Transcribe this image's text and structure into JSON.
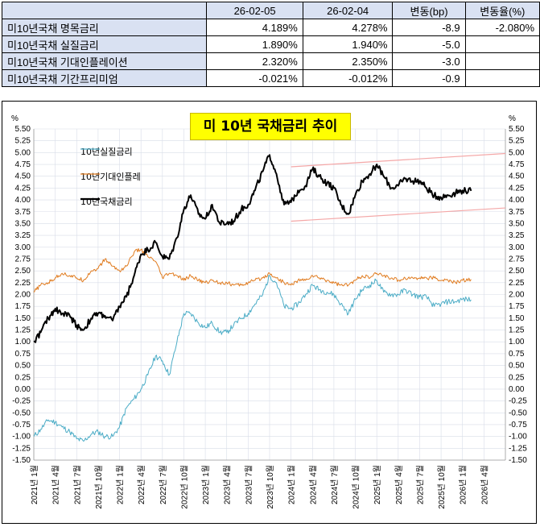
{
  "table": {
    "headers": [
      "",
      "26-02-05",
      "26-02-04",
      "변동(bp)",
      "변동율(%)"
    ],
    "rows": [
      {
        "label": "미10년국채 명목금리",
        "v1": "4.189%",
        "v2": "4.278%",
        "bp": "-8.9",
        "pct": "-2.080%"
      },
      {
        "label": "미10년국채 실질금리",
        "v1": "1.890%",
        "v2": "1.940%",
        "bp": "-5.0",
        "pct": ""
      },
      {
        "label": "미10년국채 기대인플레이션",
        "v1": "2.320%",
        "v2": "2.350%",
        "bp": "-3.0",
        "pct": ""
      },
      {
        "label": "미10년국채 기간프리미엄",
        "v1": "-0.021%",
        "v2": "-0.012%",
        "bp": "-0.9",
        "pct": ""
      }
    ]
  },
  "chart_data": {
    "type": "line",
    "title": "미 10년 국채금리 추이",
    "unit_left": "%",
    "unit_right": "%",
    "ylim": [
      -1.5,
      5.5
    ],
    "ytick_step": 0.25,
    "x_start": 2021.0,
    "x_end": 2026.5,
    "xticks": [
      "2021년 1월",
      "2021년 4월",
      "2021년 7월",
      "2021년 10월",
      "2022년 1월",
      "2022년 4월",
      "2022년 7월",
      "2022년 10월",
      "2023년 1월",
      "2023년 4월",
      "2023년 7월",
      "2023년 10월",
      "2024년 1월",
      "2024년 4월",
      "2024년 7월",
      "2024년 10월",
      "2025년 1월",
      "2025년 4월",
      "2025년 7월",
      "2025년 10월",
      "2026년 1월",
      "2026년 4월"
    ],
    "grid": true,
    "series": [
      {
        "name": "10년실질금리",
        "color": "#4bacc6",
        "x": [
          2021.0,
          2021.08,
          2021.17,
          2021.25,
          2021.33,
          2021.42,
          2021.5,
          2021.58,
          2021.67,
          2021.75,
          2021.83,
          2021.92,
          2022.0,
          2022.08,
          2022.17,
          2022.25,
          2022.33,
          2022.42,
          2022.5,
          2022.58,
          2022.67,
          2022.75,
          2022.83,
          2022.92,
          2023.0,
          2023.08,
          2023.17,
          2023.25,
          2023.33,
          2023.42,
          2023.5,
          2023.58,
          2023.67,
          2023.75,
          2023.83,
          2023.92,
          2024.0,
          2024.08,
          2024.17,
          2024.25,
          2024.33,
          2024.42,
          2024.5,
          2024.58,
          2024.67,
          2024.75,
          2024.83,
          2024.92,
          2025.0,
          2025.08,
          2025.17,
          2025.25,
          2025.33,
          2025.42,
          2025.5,
          2025.58,
          2025.67,
          2025.75,
          2025.83,
          2025.92,
          2026.0,
          2026.1
        ],
        "values": [
          -1.0,
          -0.85,
          -0.65,
          -0.7,
          -0.8,
          -0.9,
          -1.05,
          -1.1,
          -0.95,
          -0.9,
          -1.0,
          -1.0,
          -0.8,
          -0.4,
          -0.2,
          0.0,
          0.3,
          0.7,
          0.6,
          0.3,
          1.0,
          1.6,
          1.6,
          1.4,
          1.3,
          1.4,
          1.2,
          1.2,
          1.35,
          1.5,
          1.6,
          1.8,
          2.0,
          2.4,
          2.25,
          1.75,
          1.7,
          1.8,
          2.0,
          2.2,
          2.1,
          2.05,
          2.0,
          1.8,
          1.6,
          1.9,
          2.1,
          2.2,
          2.3,
          2.05,
          2.0,
          2.0,
          2.1,
          2.0,
          1.95,
          1.95,
          1.75,
          1.8,
          1.85,
          1.85,
          1.9,
          1.89
        ]
      },
      {
        "name": "10년기대인플레",
        "color": "#e07b1f",
        "x": [
          2021.0,
          2021.08,
          2021.17,
          2021.25,
          2021.33,
          2021.42,
          2021.5,
          2021.58,
          2021.67,
          2021.75,
          2021.83,
          2021.92,
          2022.0,
          2022.08,
          2022.17,
          2022.25,
          2022.33,
          2022.42,
          2022.5,
          2022.58,
          2022.67,
          2022.75,
          2022.83,
          2022.92,
          2023.0,
          2023.08,
          2023.17,
          2023.25,
          2023.33,
          2023.42,
          2023.5,
          2023.58,
          2023.67,
          2023.75,
          2023.83,
          2023.92,
          2024.0,
          2024.08,
          2024.17,
          2024.25,
          2024.33,
          2024.42,
          2024.5,
          2024.58,
          2024.67,
          2024.75,
          2024.83,
          2024.92,
          2025.0,
          2025.08,
          2025.17,
          2025.25,
          2025.33,
          2025.42,
          2025.5,
          2025.58,
          2025.67,
          2025.75,
          2025.83,
          2025.92,
          2026.0,
          2026.1
        ],
        "values": [
          2.05,
          2.2,
          2.25,
          2.35,
          2.45,
          2.4,
          2.35,
          2.3,
          2.5,
          2.55,
          2.75,
          2.6,
          2.5,
          2.6,
          2.9,
          2.95,
          2.8,
          2.7,
          2.35,
          2.45,
          2.4,
          2.3,
          2.4,
          2.3,
          2.25,
          2.3,
          2.25,
          2.25,
          2.2,
          2.2,
          2.25,
          2.3,
          2.35,
          2.45,
          2.35,
          2.25,
          2.2,
          2.3,
          2.3,
          2.4,
          2.35,
          2.3,
          2.25,
          2.2,
          2.2,
          2.3,
          2.4,
          2.35,
          2.45,
          2.4,
          2.35,
          2.3,
          2.35,
          2.35,
          2.35,
          2.35,
          2.35,
          2.3,
          2.3,
          2.25,
          2.3,
          2.32
        ]
      },
      {
        "name": "10년국채금리",
        "color": "#000000",
        "x": [
          2021.0,
          2021.08,
          2021.17,
          2021.25,
          2021.33,
          2021.42,
          2021.5,
          2021.58,
          2021.67,
          2021.75,
          2021.83,
          2021.92,
          2022.0,
          2022.08,
          2022.17,
          2022.25,
          2022.33,
          2022.42,
          2022.5,
          2022.58,
          2022.67,
          2022.75,
          2022.83,
          2022.92,
          2023.0,
          2023.08,
          2023.17,
          2023.25,
          2023.33,
          2023.42,
          2023.5,
          2023.58,
          2023.67,
          2023.75,
          2023.83,
          2023.92,
          2024.0,
          2024.08,
          2024.17,
          2024.25,
          2024.33,
          2024.42,
          2024.5,
          2024.58,
          2024.67,
          2024.75,
          2024.83,
          2024.92,
          2025.0,
          2025.08,
          2025.17,
          2025.25,
          2025.33,
          2025.42,
          2025.5,
          2025.58,
          2025.67,
          2025.75,
          2025.83,
          2025.92,
          2026.0,
          2026.1
        ],
        "values": [
          1.0,
          1.2,
          1.5,
          1.7,
          1.6,
          1.55,
          1.35,
          1.25,
          1.5,
          1.6,
          1.55,
          1.45,
          1.75,
          1.95,
          2.4,
          2.85,
          2.95,
          3.1,
          2.8,
          2.75,
          3.2,
          3.8,
          4.1,
          3.7,
          3.6,
          3.9,
          3.5,
          3.5,
          3.55,
          3.8,
          3.9,
          4.2,
          4.6,
          4.95,
          4.55,
          3.9,
          3.95,
          4.2,
          4.3,
          4.65,
          4.5,
          4.35,
          4.25,
          3.9,
          3.7,
          4.1,
          4.4,
          4.55,
          4.75,
          4.5,
          4.25,
          4.3,
          4.45,
          4.4,
          4.4,
          4.25,
          4.1,
          4.05,
          4.1,
          4.15,
          4.2,
          4.19
        ]
      }
    ],
    "trend_lines": {
      "color": "#f4a7a7",
      "upper": {
        "x": [
          2024.0,
          2026.5
        ],
        "values": [
          4.7,
          4.98
        ]
      },
      "lower": {
        "x": [
          2024.0,
          2026.5
        ],
        "values": [
          3.55,
          3.83
        ]
      }
    }
  }
}
